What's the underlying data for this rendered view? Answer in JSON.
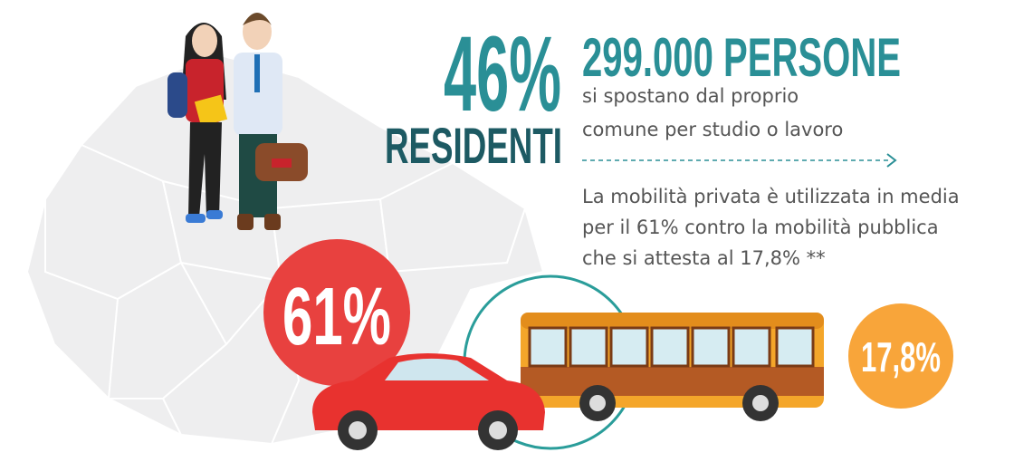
{
  "headline": {
    "percent": "46%",
    "label": "RESIDENTI",
    "count": "299.000 PERSONE",
    "description": [
      "si spostano dal proprio",
      "comune per studio o lavoro"
    ]
  },
  "mobility": {
    "text": [
      "La mobilità privata è utilizzata in media",
      "per il 61% contro la mobilità pubblica",
      "che si attesta al 17,8% **"
    ],
    "private": "61%",
    "public": "17,8%"
  }
}
